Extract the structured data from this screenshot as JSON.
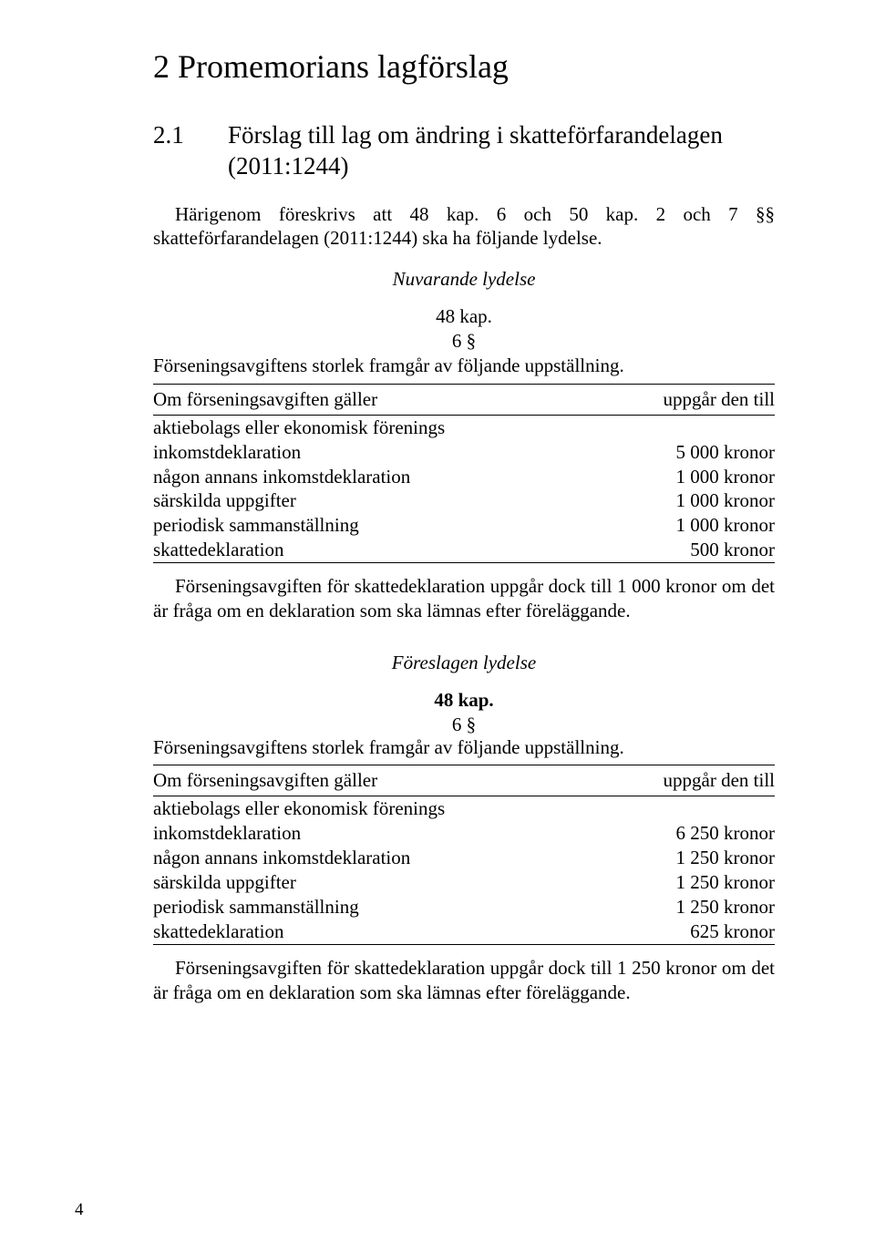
{
  "colors": {
    "text": "#000000",
    "background": "#ffffff",
    "rule": "#000000"
  },
  "fonts": {
    "body_family": "Times New Roman",
    "body_size_pt": 16,
    "h1_size_pt": 27,
    "h2_size_pt": 20
  },
  "page_number": "4",
  "h1": "2   Promemorians lagförslag",
  "h2_num": "2.1",
  "h2_title": "Förslag till lag om ändring i skatteförfarandelagen (2011:1244)",
  "intro": "Härigenom föreskrivs att 48 kap. 6 och 50 kap. 2 och 7 §§ skatteförfarandelagen (2011:1244) ska ha följande lydelse.",
  "current": {
    "heading": "Nuvarande lydelse",
    "kap": "48 kap.",
    "para_no": "6 §",
    "lead": "Förseningsavgiftens storlek framgår av följande uppställning.",
    "table": {
      "head_left": "Om förseningsavgiften gäller",
      "head_right": "uppgår den till",
      "rows": [
        [
          "aktiebolags eller ekonomisk förenings inkomstdeklaration",
          "5 000 kronor"
        ],
        [
          "någon annans inkomstdeklaration",
          "1 000 kronor"
        ],
        [
          "särskilda uppgifter",
          "1 000 kronor"
        ],
        [
          "periodisk sammanställning",
          "1 000 kronor"
        ],
        [
          "skattedeklaration",
          "500 kronor"
        ]
      ]
    },
    "note": "Förseningsavgiften för skattedeklaration uppgår dock till 1 000 kronor om det är fråga om en deklaration som ska lämnas efter föreläggande."
  },
  "proposed": {
    "heading": "Föreslagen lydelse",
    "kap": "48 kap.",
    "para_no": "6 §",
    "lead": "Förseningsavgiftens storlek framgår av följande uppställning.",
    "table": {
      "head_left": "Om förseningsavgiften gäller",
      "head_right": "uppgår den till",
      "rows": [
        [
          "aktiebolags eller ekonomisk förenings inkomstdeklaration",
          "6 250 kronor"
        ],
        [
          "någon annans inkomstdeklaration",
          "1 250 kronor"
        ],
        [
          "särskilda uppgifter",
          "1 250 kronor"
        ],
        [
          "periodisk sammanställning",
          "1 250 kronor"
        ],
        [
          "skattedeklaration",
          "625 kronor"
        ]
      ]
    },
    "note": "Förseningsavgiften för skattedeklaration uppgår dock till 1 250 kronor om det är fråga om en deklaration som ska lämnas efter föreläggande."
  }
}
